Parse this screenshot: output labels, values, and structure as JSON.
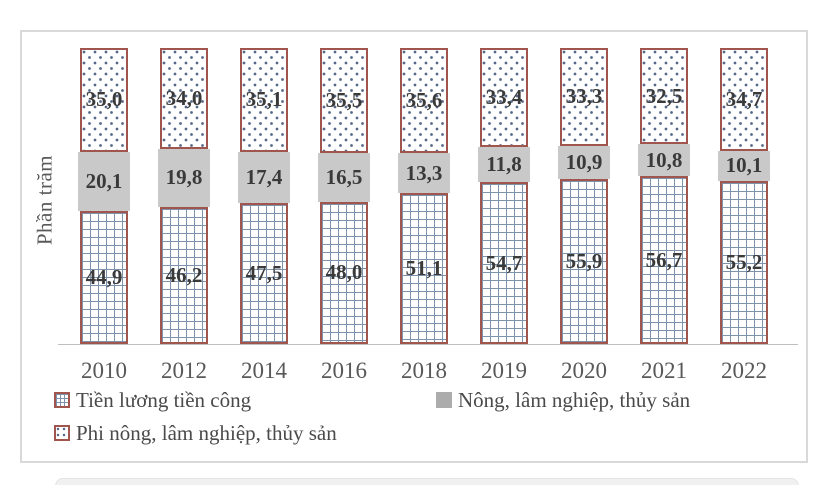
{
  "chart_data": {
    "type": "bar",
    "stacked": true,
    "percent_stacked": true,
    "categories": [
      "2010",
      "2012",
      "2014",
      "2016",
      "2018",
      "2019",
      "2020",
      "2021",
      "2022"
    ],
    "series": [
      {
        "name": "Tiền lương tiền công",
        "pattern": "grid",
        "values": [
          44.9,
          46.2,
          47.5,
          48.0,
          51.1,
          54.7,
          55.9,
          56.7,
          55.2
        ],
        "labels": [
          "44,9",
          "46,2",
          "47,5",
          "48,0",
          "51,1",
          "54,7",
          "55,9",
          "56,7",
          "55,2"
        ]
      },
      {
        "name": "Nông, lâm nghiệp, thủy sản",
        "pattern": "solid",
        "values": [
          20.1,
          19.8,
          17.4,
          16.5,
          13.3,
          11.8,
          10.9,
          10.8,
          10.1
        ],
        "labels": [
          "20,1",
          "19,8",
          "17,4",
          "16,5",
          "13,3",
          "11,8",
          "10,9",
          "10,8",
          "10,1"
        ]
      },
      {
        "name": "Phi nông, lâm nghiệp, thủy sản",
        "pattern": "dots",
        "values": [
          35.0,
          34.0,
          35.1,
          35.5,
          35.6,
          33.4,
          33.3,
          32.5,
          34.7
        ],
        "labels": [
          "35,0",
          "34,0",
          "35,1",
          "35,5",
          "35,6",
          "33,4",
          "33,3",
          "32,5",
          "34,7"
        ]
      }
    ],
    "title": "",
    "xlabel": "",
    "ylabel": "Phần trăm",
    "ylim": [
      0,
      100
    ],
    "grid": false,
    "legend_position": "bottom"
  },
  "ylabel": "Phần trăm",
  "legend": {
    "items": [
      {
        "label": "Tiền lương tiền công",
        "swatch": "grid"
      },
      {
        "label": "Nông, lâm nghiệp, thủy sản",
        "swatch": "solid"
      },
      {
        "label": "Phi nông, lâm nghiệp, thủy sản",
        "swatch": "dots"
      }
    ]
  },
  "colors": {
    "bar_border": "#A0554D",
    "pattern_blue": "#55688A",
    "grid_line_blue": "#7C92AD",
    "gray_fill": "#C9C9C9",
    "legend_gray": "#ACACAC",
    "frame_border": "#D9D9D9",
    "axis_line": "#BFBFBF",
    "value_text": "#3A3A3A",
    "axis_text": "#595959"
  }
}
